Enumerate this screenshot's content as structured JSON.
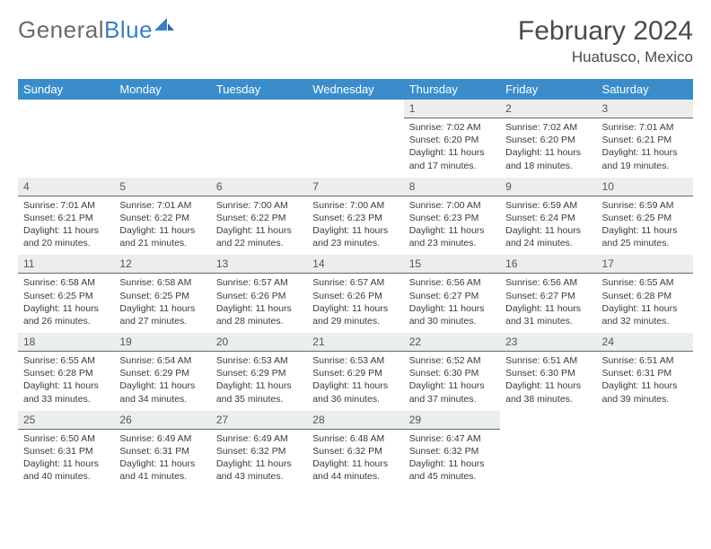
{
  "brand": {
    "word1": "General",
    "word2": "Blue"
  },
  "title": "February 2024",
  "location": "Huatusco, Mexico",
  "colors": {
    "header_bg": "#3a8dca",
    "header_text": "#ffffff",
    "daynum_bg": "#eceeee",
    "daynum_border": "#5a6a78",
    "body_bg": "#ffffff",
    "text": "#333333",
    "logo_gray": "#6a6a6a",
    "logo_blue": "#3a7ebf"
  },
  "dow": [
    "Sunday",
    "Monday",
    "Tuesday",
    "Wednesday",
    "Thursday",
    "Friday",
    "Saturday"
  ],
  "weeks": [
    [
      {
        "n": "",
        "sr": "",
        "ss": "",
        "dl": ""
      },
      {
        "n": "",
        "sr": "",
        "ss": "",
        "dl": ""
      },
      {
        "n": "",
        "sr": "",
        "ss": "",
        "dl": ""
      },
      {
        "n": "",
        "sr": "",
        "ss": "",
        "dl": ""
      },
      {
        "n": "1",
        "sr": "Sunrise: 7:02 AM",
        "ss": "Sunset: 6:20 PM",
        "dl": "Daylight: 11 hours and 17 minutes."
      },
      {
        "n": "2",
        "sr": "Sunrise: 7:02 AM",
        "ss": "Sunset: 6:20 PM",
        "dl": "Daylight: 11 hours and 18 minutes."
      },
      {
        "n": "3",
        "sr": "Sunrise: 7:01 AM",
        "ss": "Sunset: 6:21 PM",
        "dl": "Daylight: 11 hours and 19 minutes."
      }
    ],
    [
      {
        "n": "4",
        "sr": "Sunrise: 7:01 AM",
        "ss": "Sunset: 6:21 PM",
        "dl": "Daylight: 11 hours and 20 minutes."
      },
      {
        "n": "5",
        "sr": "Sunrise: 7:01 AM",
        "ss": "Sunset: 6:22 PM",
        "dl": "Daylight: 11 hours and 21 minutes."
      },
      {
        "n": "6",
        "sr": "Sunrise: 7:00 AM",
        "ss": "Sunset: 6:22 PM",
        "dl": "Daylight: 11 hours and 22 minutes."
      },
      {
        "n": "7",
        "sr": "Sunrise: 7:00 AM",
        "ss": "Sunset: 6:23 PM",
        "dl": "Daylight: 11 hours and 23 minutes."
      },
      {
        "n": "8",
        "sr": "Sunrise: 7:00 AM",
        "ss": "Sunset: 6:23 PM",
        "dl": "Daylight: 11 hours and 23 minutes."
      },
      {
        "n": "9",
        "sr": "Sunrise: 6:59 AM",
        "ss": "Sunset: 6:24 PM",
        "dl": "Daylight: 11 hours and 24 minutes."
      },
      {
        "n": "10",
        "sr": "Sunrise: 6:59 AM",
        "ss": "Sunset: 6:25 PM",
        "dl": "Daylight: 11 hours and 25 minutes."
      }
    ],
    [
      {
        "n": "11",
        "sr": "Sunrise: 6:58 AM",
        "ss": "Sunset: 6:25 PM",
        "dl": "Daylight: 11 hours and 26 minutes."
      },
      {
        "n": "12",
        "sr": "Sunrise: 6:58 AM",
        "ss": "Sunset: 6:25 PM",
        "dl": "Daylight: 11 hours and 27 minutes."
      },
      {
        "n": "13",
        "sr": "Sunrise: 6:57 AM",
        "ss": "Sunset: 6:26 PM",
        "dl": "Daylight: 11 hours and 28 minutes."
      },
      {
        "n": "14",
        "sr": "Sunrise: 6:57 AM",
        "ss": "Sunset: 6:26 PM",
        "dl": "Daylight: 11 hours and 29 minutes."
      },
      {
        "n": "15",
        "sr": "Sunrise: 6:56 AM",
        "ss": "Sunset: 6:27 PM",
        "dl": "Daylight: 11 hours and 30 minutes."
      },
      {
        "n": "16",
        "sr": "Sunrise: 6:56 AM",
        "ss": "Sunset: 6:27 PM",
        "dl": "Daylight: 11 hours and 31 minutes."
      },
      {
        "n": "17",
        "sr": "Sunrise: 6:55 AM",
        "ss": "Sunset: 6:28 PM",
        "dl": "Daylight: 11 hours and 32 minutes."
      }
    ],
    [
      {
        "n": "18",
        "sr": "Sunrise: 6:55 AM",
        "ss": "Sunset: 6:28 PM",
        "dl": "Daylight: 11 hours and 33 minutes."
      },
      {
        "n": "19",
        "sr": "Sunrise: 6:54 AM",
        "ss": "Sunset: 6:29 PM",
        "dl": "Daylight: 11 hours and 34 minutes."
      },
      {
        "n": "20",
        "sr": "Sunrise: 6:53 AM",
        "ss": "Sunset: 6:29 PM",
        "dl": "Daylight: 11 hours and 35 minutes."
      },
      {
        "n": "21",
        "sr": "Sunrise: 6:53 AM",
        "ss": "Sunset: 6:29 PM",
        "dl": "Daylight: 11 hours and 36 minutes."
      },
      {
        "n": "22",
        "sr": "Sunrise: 6:52 AM",
        "ss": "Sunset: 6:30 PM",
        "dl": "Daylight: 11 hours and 37 minutes."
      },
      {
        "n": "23",
        "sr": "Sunrise: 6:51 AM",
        "ss": "Sunset: 6:30 PM",
        "dl": "Daylight: 11 hours and 38 minutes."
      },
      {
        "n": "24",
        "sr": "Sunrise: 6:51 AM",
        "ss": "Sunset: 6:31 PM",
        "dl": "Daylight: 11 hours and 39 minutes."
      }
    ],
    [
      {
        "n": "25",
        "sr": "Sunrise: 6:50 AM",
        "ss": "Sunset: 6:31 PM",
        "dl": "Daylight: 11 hours and 40 minutes."
      },
      {
        "n": "26",
        "sr": "Sunrise: 6:49 AM",
        "ss": "Sunset: 6:31 PM",
        "dl": "Daylight: 11 hours and 41 minutes."
      },
      {
        "n": "27",
        "sr": "Sunrise: 6:49 AM",
        "ss": "Sunset: 6:32 PM",
        "dl": "Daylight: 11 hours and 43 minutes."
      },
      {
        "n": "28",
        "sr": "Sunrise: 6:48 AM",
        "ss": "Sunset: 6:32 PM",
        "dl": "Daylight: 11 hours and 44 minutes."
      },
      {
        "n": "29",
        "sr": "Sunrise: 6:47 AM",
        "ss": "Sunset: 6:32 PM",
        "dl": "Daylight: 11 hours and 45 minutes."
      },
      {
        "n": "",
        "sr": "",
        "ss": "",
        "dl": ""
      },
      {
        "n": "",
        "sr": "",
        "ss": "",
        "dl": ""
      }
    ]
  ]
}
